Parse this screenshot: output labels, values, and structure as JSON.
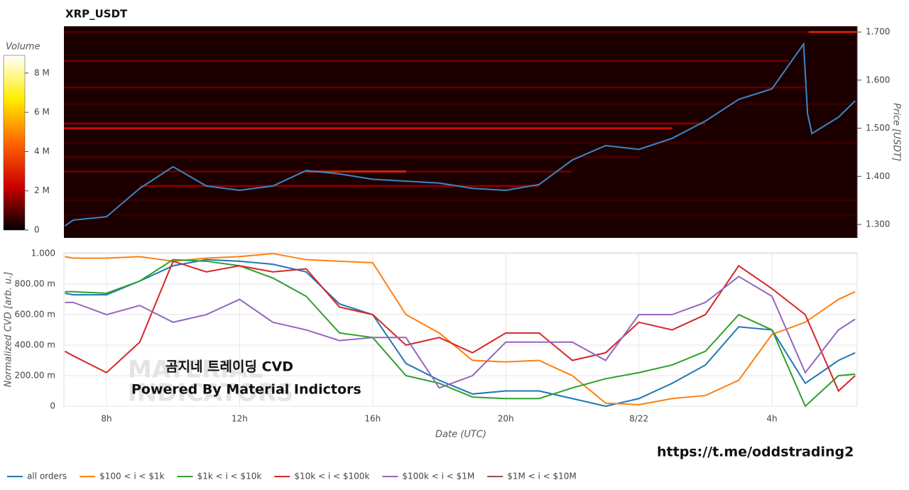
{
  "chart_data": [
    {
      "type": "heatmap",
      "title": "XRP_USDT",
      "y_label": "Price [USDT]",
      "xlim": [
        6.72,
        30.56
      ],
      "ylim": [
        1.272,
        1.712
      ],
      "yticks": [
        {
          "value": 1.3,
          "label": "1.300"
        },
        {
          "value": 1.4,
          "label": "1.400"
        },
        {
          "value": 1.5,
          "label": "1.500"
        },
        {
          "value": 1.6,
          "label": "1.600"
        },
        {
          "value": 1.7,
          "label": "1.700"
        }
      ],
      "cells": [
        {
          "price": 1.7,
          "start": 29.1,
          "end": 30.56,
          "volume": 3000000
        },
        {
          "price": 1.7,
          "start": 6.72,
          "end": 29.1,
          "volume": 800000
        },
        {
          "price": 1.64,
          "start": 6.72,
          "end": 28.5,
          "volume": 1200000
        },
        {
          "price": 1.585,
          "start": 6.72,
          "end": 29,
          "volume": 1000000
        },
        {
          "price": 1.55,
          "start": 6.72,
          "end": 30.56,
          "volume": 600000
        },
        {
          "price": 1.51,
          "start": 6.72,
          "end": 26,
          "volume": 1500000
        },
        {
          "price": 1.5,
          "start": 6.72,
          "end": 25,
          "volume": 2500000
        },
        {
          "price": 1.47,
          "start": 6.72,
          "end": 30.56,
          "volume": 700000
        },
        {
          "price": 1.44,
          "start": 6.72,
          "end": 24,
          "volume": 800000
        },
        {
          "price": 1.41,
          "start": 6.72,
          "end": 22,
          "volume": 1200000
        },
        {
          "price": 1.41,
          "start": 14,
          "end": 17,
          "volume": 3000000
        },
        {
          "price": 1.38,
          "start": 9,
          "end": 21,
          "volume": 1500000
        },
        {
          "price": 1.35,
          "start": 6.72,
          "end": 30.56,
          "volume": 600000
        },
        {
          "price": 1.32,
          "start": 6.72,
          "end": 30.56,
          "volume": 500000
        }
      ],
      "colorbar": {
        "label": "Volume",
        "lim": [
          0,
          8900000
        ],
        "colors": [
          "#000000",
          "#cc0000",
          "#ff6600",
          "#ffee00",
          "#ffffff"
        ],
        "ticks": [
          0,
          {
            "value": 2000000,
            "label": "2 M"
          },
          {
            "value": 4000000,
            "label": "4 M"
          },
          {
            "value": 6000000,
            "label": "6 M"
          },
          {
            "value": 8000000,
            "label": "8 M"
          }
        ]
      },
      "price": {
        "color": "#3a86c8",
        "x": [
          6.75,
          7,
          8,
          9,
          10,
          11,
          12,
          13,
          14,
          15,
          16,
          17,
          18,
          19,
          20,
          21,
          22,
          23,
          24,
          25,
          26,
          27,
          28,
          28.95,
          29.07,
          29.2,
          30,
          30.5
        ],
        "values": [
          1.297,
          1.309,
          1.316,
          1.375,
          1.42,
          1.38,
          1.371,
          1.38,
          1.412,
          1.405,
          1.394,
          1.39,
          1.386,
          1.375,
          1.371,
          1.383,
          1.434,
          1.464,
          1.456,
          1.479,
          1.515,
          1.56,
          1.582,
          1.675,
          1.53,
          1.489,
          1.523,
          1.557
        ]
      }
    },
    {
      "type": "line",
      "x_label": "Date (UTC)",
      "y_label": "Normalized CVD [arb. u.]",
      "xlim": [
        6.72,
        30.56
      ],
      "ylim": [
        0,
        1.005
      ],
      "xticks": [
        {
          "value": 8,
          "label": "8h"
        },
        {
          "value": 12,
          "label": "12h"
        },
        {
          "value": 16,
          "label": "16h"
        },
        {
          "value": 20,
          "label": "20h"
        },
        {
          "value": 24,
          "label": "8/22"
        },
        {
          "value": 28,
          "label": "4h"
        }
      ],
      "yticks": [
        0,
        {
          "value": 0.2,
          "label": "200.00 m"
        },
        {
          "value": 0.4,
          "label": "400.00 m"
        },
        {
          "value": 0.6,
          "label": "600.00 m"
        },
        {
          "value": 0.8,
          "label": "800.00 m"
        },
        {
          "value": 1,
          "label": "1.000"
        }
      ],
      "grid": true,
      "x": [
        6.75,
        7,
        8,
        9,
        10,
        11,
        12,
        13,
        14,
        15,
        16,
        17,
        18,
        19,
        20,
        21,
        22,
        23,
        24,
        25,
        26,
        27,
        28,
        29,
        30,
        30.5
      ],
      "series": [
        {
          "name": "all orders",
          "color": "#1f77b4",
          "values": [
            0.74,
            0.73,
            0.73,
            0.82,
            0.92,
            0.96,
            0.95,
            0.93,
            0.88,
            0.67,
            0.6,
            0.28,
            0.17,
            0.08,
            0.1,
            0.1,
            0.05,
            0.0,
            0.05,
            0.15,
            0.27,
            0.52,
            0.5,
            0.15,
            0.3,
            0.35
          ]
        },
        {
          "name": "$100 < i < $1k",
          "color": "#ff7f0e",
          "values": [
            0.98,
            0.97,
            0.97,
            0.98,
            0.95,
            0.97,
            0.98,
            1.0,
            0.96,
            0.95,
            0.94,
            0.6,
            0.48,
            0.3,
            0.29,
            0.3,
            0.2,
            0.02,
            0.01,
            0.05,
            0.07,
            0.17,
            0.47,
            0.55,
            0.7,
            0.75
          ]
        },
        {
          "name": "$1k < i < $10k",
          "color": "#2ca02c",
          "values": [
            0.75,
            0.75,
            0.74,
            0.82,
            0.96,
            0.95,
            0.92,
            0.84,
            0.72,
            0.48,
            0.45,
            0.2,
            0.15,
            0.06,
            0.05,
            0.05,
            0.12,
            0.18,
            0.22,
            0.27,
            0.36,
            0.6,
            0.5,
            0.0,
            0.2,
            0.21
          ]
        },
        {
          "name": "$10k < i < $100k",
          "color": "#d62728",
          "values": [
            0.36,
            0.33,
            0.22,
            0.42,
            0.95,
            0.88,
            0.92,
            0.88,
            0.9,
            0.65,
            0.6,
            0.4,
            0.45,
            0.35,
            0.48,
            0.48,
            0.3,
            0.35,
            0.55,
            0.5,
            0.6,
            0.92,
            0.77,
            0.6,
            0.1,
            0.2
          ]
        },
        {
          "name": "$100k < i < $1M",
          "color": "#9467bd",
          "values": [
            0.68,
            0.68,
            0.6,
            0.66,
            0.55,
            0.6,
            0.7,
            0.55,
            0.5,
            0.43,
            0.45,
            0.45,
            0.12,
            0.2,
            0.42,
            0.42,
            0.42,
            0.3,
            0.6,
            0.6,
            0.68,
            0.85,
            0.72,
            0.22,
            0.5,
            0.57
          ]
        },
        {
          "name": "$1M < i < $10M",
          "color": "#8c564b",
          "values": [
            null,
            null,
            null,
            null,
            null,
            null,
            null,
            null,
            null,
            null,
            null,
            null,
            null,
            null,
            null,
            null,
            null,
            null,
            null,
            null,
            null,
            null,
            null,
            null,
            null,
            null
          ]
        }
      ],
      "annotations": [
        "곰지네 트레이딩 CVD",
        "Powered By Material Indictors"
      ],
      "watermark": [
        "MATERIAL",
        "INDICATORS"
      ]
    }
  ],
  "footer_link": "https://t.me/oddstrading2"
}
